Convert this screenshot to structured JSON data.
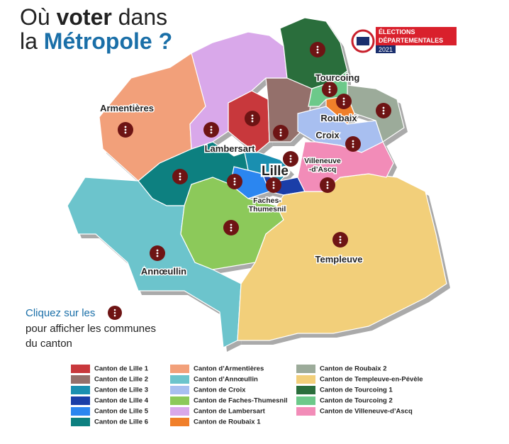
{
  "header": {
    "line1": {
      "pre": "Où",
      "bold": "voter",
      "post": "dans"
    },
    "line2": {
      "pre": "la",
      "bold": "Métropole ?"
    }
  },
  "logo": {
    "line1": "ÉLECTIONS",
    "line2": "DÉPARTEMENTALES",
    "year": "2021"
  },
  "map": {
    "labels": [
      [
        "Armentières"
      ],
      [
        "Tourcoing"
      ],
      [
        "Roubaix"
      ],
      [
        "Croix"
      ],
      [
        "Lambersart"
      ],
      [
        "Lille"
      ],
      [
        "Villeneuve",
        "-d’Ascq"
      ],
      [
        "Faches-",
        "Thumesnil"
      ],
      [
        "Templeuve"
      ],
      [
        "Annœullin"
      ]
    ]
  },
  "instruction": {
    "line1": "Cliquez sur les",
    "line2": "pour afficher les communes",
    "line3": "du canton"
  },
  "legend": [
    {
      "label": "Canton de Lille 1",
      "color": "#c8383c"
    },
    {
      "label": "Canton de Lille 2",
      "color": "#94706b"
    },
    {
      "label": "Canton de Lille 3",
      "color": "#1a8fb0"
    },
    {
      "label": "Canton de Lille 4",
      "color": "#1a3ea8"
    },
    {
      "label": "Canton de Lille 5",
      "color": "#2b86f0"
    },
    {
      "label": "Canton de Lille 6",
      "color": "#0d8080"
    },
    {
      "label": "Canton d’Armentières",
      "color": "#f2a07a"
    },
    {
      "label": "Canton d’Annœullin",
      "color": "#6cc4cc"
    },
    {
      "label": "Canton de Croix",
      "color": "#a8bff0"
    },
    {
      "label": "Canton de Faches-Thumesnil",
      "color": "#8cc95a"
    },
    {
      "label": "Canton de Lambersart",
      "color": "#d9a8ea"
    },
    {
      "label": "Canton de Roubaix 1",
      "color": "#f07f2a"
    },
    {
      "label": "Canton de Roubaix 2",
      "color": "#9cab9a"
    },
    {
      "label": "Canton de Templeuve-en-Pévèle",
      "color": "#f2cf7a"
    },
    {
      "label": "Canton de Tourcoing 1",
      "color": "#2a6e3c"
    },
    {
      "label": "Canton de Tourcoing 2",
      "color": "#6cc98a"
    },
    {
      "label": "Canton de Villeneuve-d’Ascq",
      "color": "#f28cb8"
    }
  ]
}
